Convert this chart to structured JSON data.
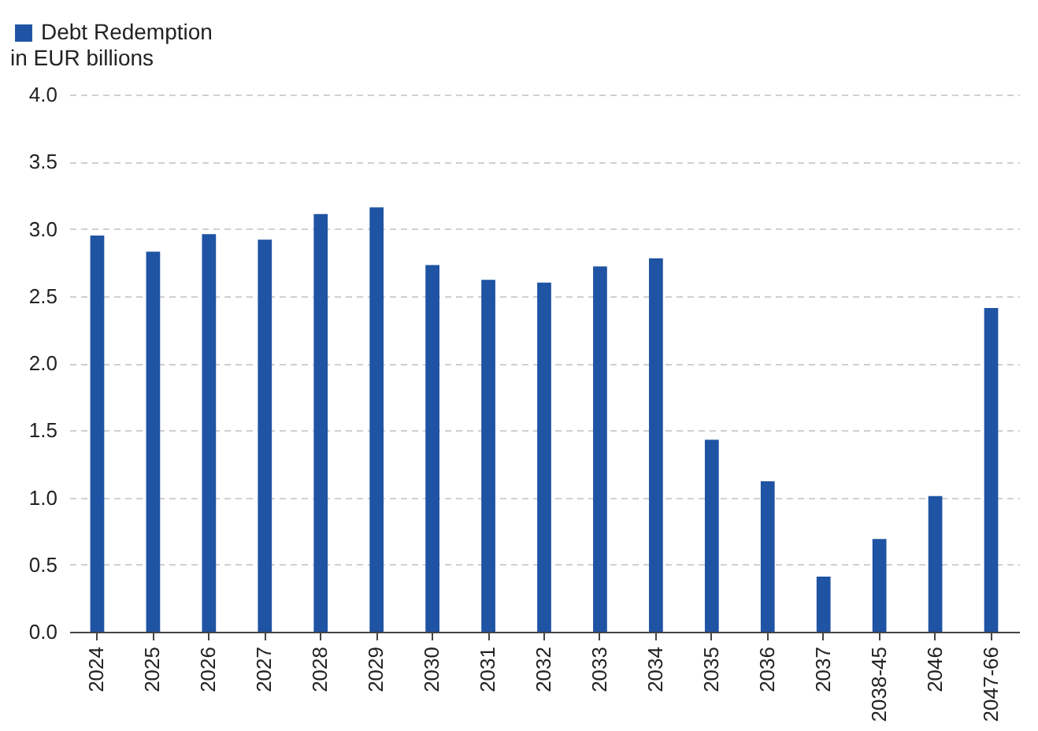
{
  "chart_data": {
    "type": "bar",
    "ylabel": "in EUR billions",
    "categories": [
      "2024",
      "2025",
      "2026",
      "2027",
      "2028",
      "2029",
      "2030",
      "2031",
      "2032",
      "2033",
      "2034",
      "2035",
      "2036",
      "2037",
      "2038-45",
      "2046",
      "2047-66"
    ],
    "series": [
      {
        "name": "Debt Redemption",
        "color": "#1f53a3",
        "values": [
          2.95,
          2.83,
          2.96,
          2.92,
          3.11,
          3.16,
          2.73,
          2.62,
          2.6,
          2.72,
          2.78,
          1.43,
          1.12,
          0.41,
          0.69,
          1.01,
          2.41
        ]
      }
    ],
    "ylim": [
      0,
      4.0
    ],
    "yticks": [
      {
        "value": 0,
        "label": "0.0"
      },
      {
        "value": 0.5,
        "label": "0.5"
      },
      {
        "value": 1,
        "label": "1.0"
      },
      {
        "value": 1.5,
        "label": "1.5"
      },
      {
        "value": 2,
        "label": "2.0"
      },
      {
        "value": 2.5,
        "label": "2.5"
      },
      {
        "value": 3,
        "label": "3.0"
      },
      {
        "value": 3.5,
        "label": "3.5"
      },
      {
        "value": 4,
        "label": "4.0"
      }
    ],
    "grid": "y",
    "legend": "top left"
  }
}
